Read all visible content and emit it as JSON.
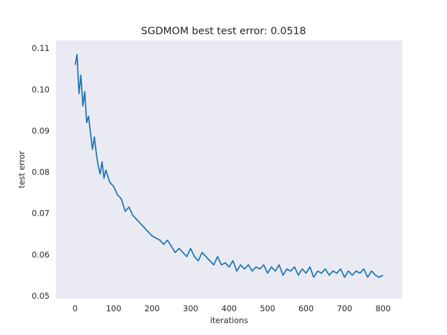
{
  "chart_data": {
    "type": "line",
    "title": "SGDMOM best test error: 0.0518",
    "xlabel": "iterations",
    "ylabel": "test error",
    "xlim": [
      -50,
      850
    ],
    "ylim": [
      0.0493,
      0.1119
    ],
    "xticks": [
      0,
      100,
      200,
      300,
      400,
      500,
      600,
      700,
      800
    ],
    "yticks": [
      0.05,
      0.06,
      0.07,
      0.08,
      0.09,
      0.1,
      0.11
    ],
    "ytick_labels": [
      "0.05",
      "0.06",
      "0.07",
      "0.08",
      "0.09",
      "0.10",
      "0.11"
    ],
    "grid": false,
    "legend": "none",
    "background_color": "#eaeaf2",
    "line_color": "#1f77b4",
    "series": [
      {
        "x": [
          0,
          5,
          10,
          15,
          20,
          25,
          30,
          35,
          40,
          45,
          50,
          55,
          60,
          65,
          70,
          75,
          80,
          90,
          100,
          110,
          120,
          130,
          140,
          150,
          160,
          170,
          180,
          190,
          200,
          210,
          220,
          230,
          240,
          250,
          260,
          270,
          280,
          290,
          300,
          310,
          320,
          330,
          340,
          350,
          360,
          370,
          380,
          390,
          400,
          410,
          420,
          430,
          440,
          450,
          460,
          470,
          480,
          490,
          500,
          510,
          520,
          530,
          540,
          550,
          560,
          570,
          580,
          590,
          600,
          610,
          620,
          630,
          640,
          650,
          660,
          670,
          680,
          690,
          700,
          710,
          720,
          730,
          740,
          750,
          760,
          770,
          780,
          790,
          800
        ],
        "y": [
          0.106,
          0.1085,
          0.099,
          0.1035,
          0.096,
          0.0995,
          0.092,
          0.0935,
          0.0895,
          0.0855,
          0.0885,
          0.0845,
          0.0815,
          0.0795,
          0.0825,
          0.0785,
          0.0805,
          0.0775,
          0.0765,
          0.0745,
          0.0735,
          0.0705,
          0.0715,
          0.0695,
          0.0685,
          0.0675,
          0.0665,
          0.0655,
          0.0645,
          0.064,
          0.0635,
          0.0625,
          0.0635,
          0.062,
          0.0605,
          0.0615,
          0.0605,
          0.0595,
          0.0615,
          0.0595,
          0.0585,
          0.0605,
          0.0595,
          0.0585,
          0.0575,
          0.0595,
          0.0575,
          0.058,
          0.057,
          0.0585,
          0.056,
          0.0575,
          0.0565,
          0.0575,
          0.056,
          0.057,
          0.0565,
          0.0575,
          0.0555,
          0.057,
          0.056,
          0.0575,
          0.055,
          0.0565,
          0.056,
          0.057,
          0.055,
          0.0565,
          0.0555,
          0.057,
          0.0545,
          0.056,
          0.0555,
          0.0565,
          0.055,
          0.056,
          0.0555,
          0.0565,
          0.0545,
          0.056,
          0.055,
          0.056,
          0.0555,
          0.0565,
          0.0545,
          0.056,
          0.055,
          0.0545,
          0.055
        ]
      }
    ]
  }
}
